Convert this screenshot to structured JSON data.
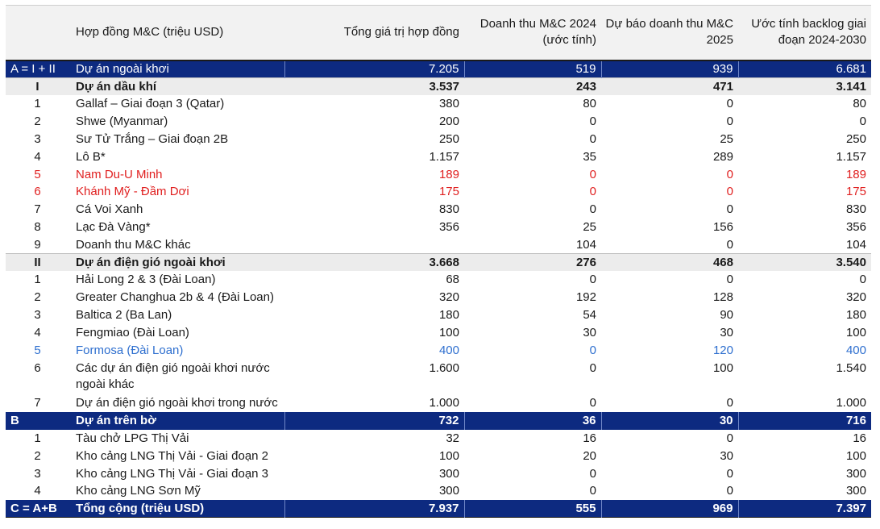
{
  "header": {
    "c0": "",
    "c1": "Hợp đồng M&C (triệu USD)",
    "c2": "Tổng giá trị hợp đồng",
    "c3": "Doanh thu M&C 2024 (ước tính)",
    "c4": "Dự báo doanh thu M&C 2025",
    "c5": "Ước tính backlog giai đoạn 2024-2030"
  },
  "rows": [
    {
      "idx": "A = I + II",
      "name": "Dự án ngoài khơi",
      "total": "7.205",
      "rev2024": "519",
      "rev2025": "939",
      "backlog": "6.681"
    },
    {
      "idx": "I",
      "name": "Dự án dầu khí",
      "total": "3.537",
      "rev2024": "243",
      "rev2025": "471",
      "backlog": "3.141"
    },
    {
      "idx": "1",
      "name": "Gallaf – Giai đoạn 3 (Qatar)",
      "total": "380",
      "rev2024": "80",
      "rev2025": "0",
      "backlog": "80"
    },
    {
      "idx": "2",
      "name": "Shwe (Myanmar)",
      "total": "200",
      "rev2024": "0",
      "rev2025": "0",
      "backlog": "0"
    },
    {
      "idx": "3",
      "name": "Sư Tử Trắng – Giai đoạn 2B",
      "total": "250",
      "rev2024": "0",
      "rev2025": "25",
      "backlog": "250"
    },
    {
      "idx": "4",
      "name": "Lô B*",
      "total": "1.157",
      "rev2024": "35",
      "rev2025": "289",
      "backlog": "1.157"
    },
    {
      "idx": "5",
      "name": "Nam Du-U Minh",
      "total": "189",
      "rev2024": "0",
      "rev2025": "0",
      "backlog": "189"
    },
    {
      "idx": "6",
      "name": "Khánh Mỹ - Đầm Dơi",
      "total": "175",
      "rev2024": "0",
      "rev2025": "0",
      "backlog": "175"
    },
    {
      "idx": "7",
      "name": "Cá Voi Xanh",
      "total": "830",
      "rev2024": "0",
      "rev2025": "0",
      "backlog": "830"
    },
    {
      "idx": "8",
      "name": "Lạc Đà Vàng*",
      "total": "356",
      "rev2024": "25",
      "rev2025": "156",
      "backlog": "356"
    },
    {
      "idx": "9",
      "name": "Doanh thu M&C khác",
      "total": "",
      "rev2024": "104",
      "rev2025": "0",
      "backlog": "104"
    },
    {
      "idx": "II",
      "name": "Dự án điện gió ngoài khơi",
      "total": "3.668",
      "rev2024": "276",
      "rev2025": "468",
      "backlog": "3.540"
    },
    {
      "idx": "1",
      "name": "Hải Long 2 & 3 (Đài Loan)",
      "total": "68",
      "rev2024": "0",
      "rev2025": "0",
      "backlog": "0"
    },
    {
      "idx": "2",
      "name": "Greater Changhua 2b & 4 (Đài Loan)",
      "total": "320",
      "rev2024": "192",
      "rev2025": "128",
      "backlog": "320"
    },
    {
      "idx": "3",
      "name": "Baltica 2 (Ba Lan)",
      "total": "180",
      "rev2024": "54",
      "rev2025": "90",
      "backlog": "180"
    },
    {
      "idx": "4",
      "name": "Fengmiao (Đài Loan)",
      "total": "100",
      "rev2024": "30",
      "rev2025": "30",
      "backlog": "100"
    },
    {
      "idx": "5",
      "name": "Formosa (Đài Loan)",
      "total": "400",
      "rev2024": "0",
      "rev2025": "120",
      "backlog": "400"
    },
    {
      "idx": "6",
      "name": "Các dự án điện gió ngoài khơi nước ngoài khác",
      "total": "1.600",
      "rev2024": "0",
      "rev2025": "100",
      "backlog": "1.540"
    },
    {
      "idx": "7",
      "name": "Dự án điện gió ngoài khơi trong nước",
      "total": "1.000",
      "rev2024": "0",
      "rev2025": "0",
      "backlog": "1.000"
    },
    {
      "idx": "B",
      "name": "Dự án trên bờ",
      "total": "732",
      "rev2024": "36",
      "rev2025": "30",
      "backlog": "716"
    },
    {
      "idx": "1",
      "name": "Tàu chở LPG Thị Vải",
      "total": "32",
      "rev2024": "16",
      "rev2025": "0",
      "backlog": "16"
    },
    {
      "idx": "2",
      "name": "Kho cảng LNG Thị Vải - Giai đoạn 2",
      "total": "100",
      "rev2024": "20",
      "rev2025": "30",
      "backlog": "100"
    },
    {
      "idx": "3",
      "name": "Kho cảng LNG Thị Vải - Giai đoạn 3",
      "total": "300",
      "rev2024": "0",
      "rev2025": "0",
      "backlog": "300"
    },
    {
      "idx": "4",
      "name": "Kho cảng LNG Sơn Mỹ",
      "total": "300",
      "rev2024": "0",
      "rev2025": "0",
      "backlog": "300"
    },
    {
      "idx": "C = A+B",
      "name": "Tổng cộng (triệu USD)",
      "total": "7.937",
      "rev2024": "555",
      "rev2025": "969",
      "backlog": "7.397"
    }
  ],
  "colors": {
    "navy": "#0d2a80",
    "red": "#e02020",
    "blue": "#2e6fcf",
    "subtotal_bg": "#ececec"
  }
}
